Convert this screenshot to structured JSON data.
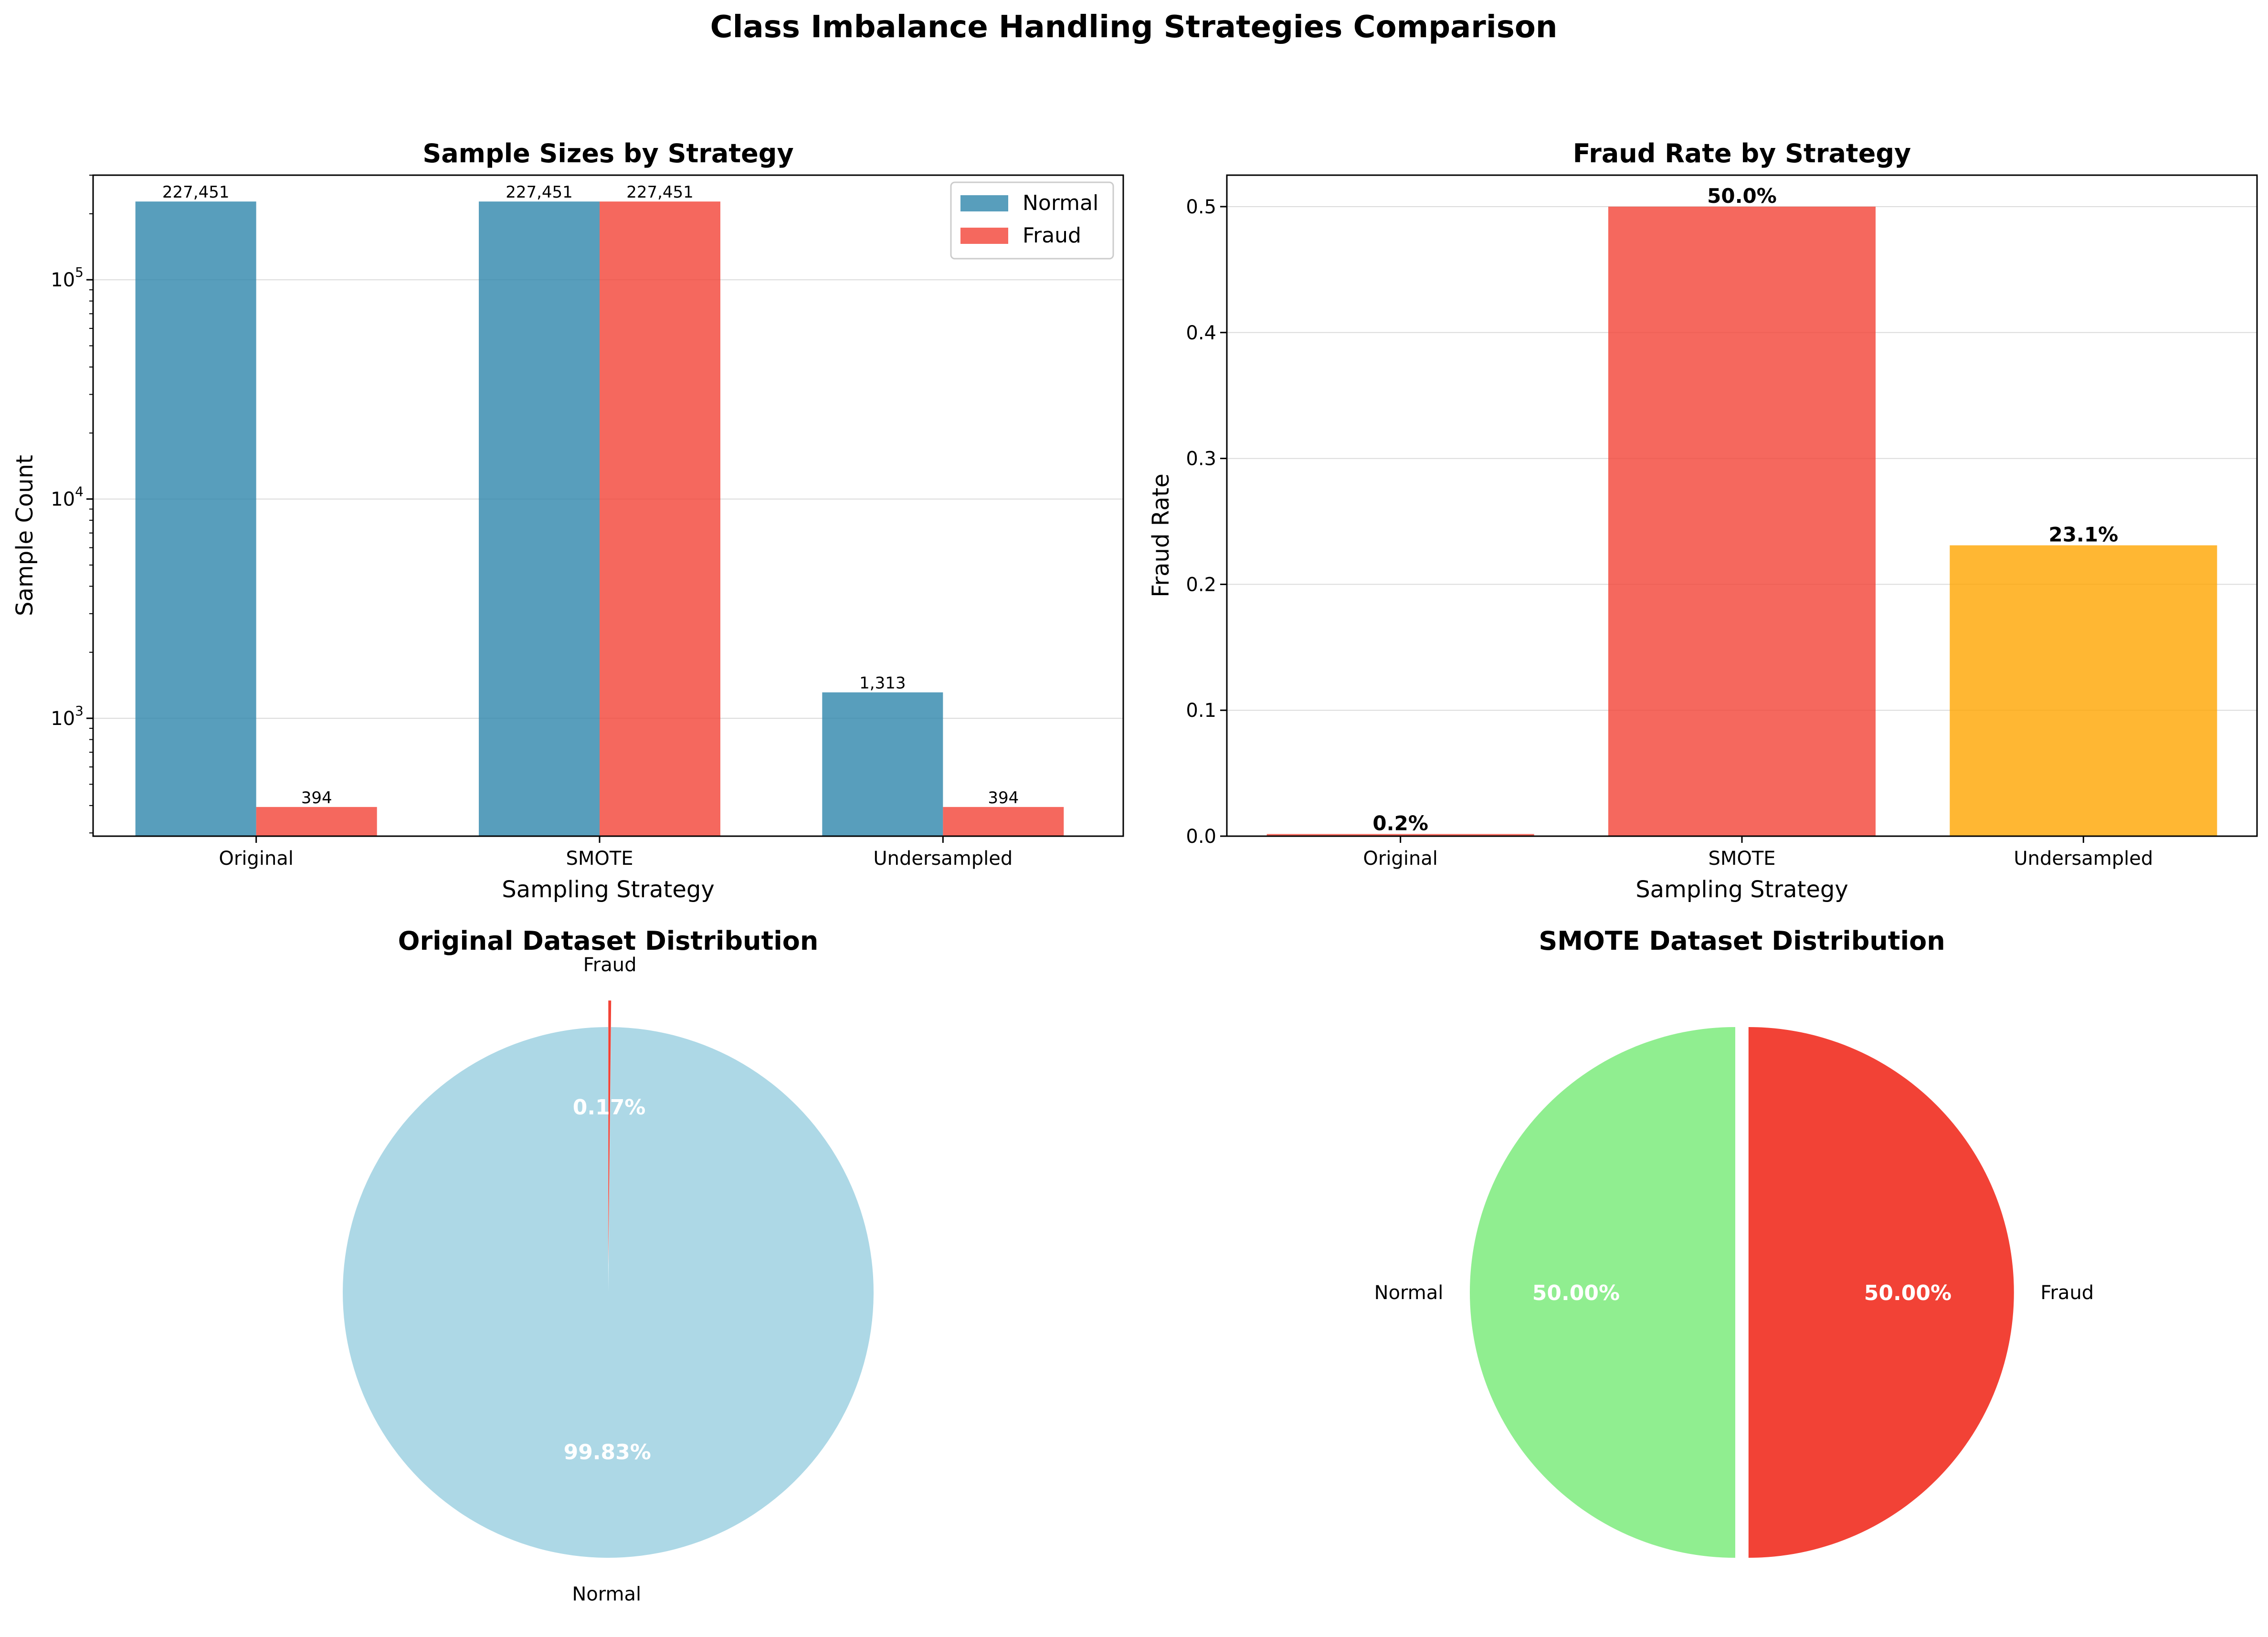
{
  "figure_title": "Class Imbalance Handling Strategies Comparison",
  "colors": {
    "normal": "#2E86AB",
    "fraud": "#F24236",
    "undersampled": "#FFA500",
    "pie_normal": "#ADD8E6",
    "pie_normal_smote": "#90EE90",
    "pie_fraud": "#F24236"
  },
  "chart_data": [
    {
      "type": "bar",
      "title": "Sample Sizes by Strategy",
      "xlabel": "Sampling Strategy",
      "ylabel": "Sample Count",
      "yscale": "log",
      "ylim": [
        290,
        300000
      ],
      "y_ticks": [
        {
          "value": 1000,
          "base": "10",
          "exp": "3"
        },
        {
          "value": 10000,
          "base": "10",
          "exp": "4"
        },
        {
          "value": 100000,
          "base": "10",
          "exp": "5"
        }
      ],
      "categories": [
        "Original",
        "SMOTE",
        "Undersampled"
      ],
      "series": [
        {
          "name": "Normal",
          "values": [
            227451,
            227451,
            1313
          ],
          "labels": [
            "227,451",
            "227,451",
            "1,313"
          ]
        },
        {
          "name": "Fraud",
          "values": [
            394,
            227451,
            394
          ],
          "labels": [
            "394",
            "227,451",
            "394"
          ]
        }
      ],
      "legend": "top-right",
      "grid": "y"
    },
    {
      "type": "bar",
      "title": "Fraud Rate by Strategy",
      "xlabel": "Sampling Strategy",
      "ylabel": "Fraud Rate",
      "ylim": [
        0,
        0.525
      ],
      "y_ticks": [
        "0.0",
        "0.1",
        "0.2",
        "0.3",
        "0.4",
        "0.5"
      ],
      "categories": [
        "Original",
        "SMOTE",
        "Undersampled"
      ],
      "values": [
        0.0017,
        0.5,
        0.231
      ],
      "labels": [
        "0.2%",
        "50.0%",
        "23.1%"
      ],
      "grid": "y"
    },
    {
      "type": "pie",
      "title": "Original Dataset Distribution",
      "slices": [
        {
          "label": "Normal",
          "value": 99.83,
          "pct": "99.83%"
        },
        {
          "label": "Fraud",
          "value": 0.17,
          "pct": "0.17%"
        }
      ]
    },
    {
      "type": "pie",
      "title": "SMOTE Dataset Distribution",
      "slices": [
        {
          "label": "Normal",
          "value": 50.0,
          "pct": "50.00%"
        },
        {
          "label": "Fraud",
          "value": 50.0,
          "pct": "50.00%"
        }
      ]
    }
  ]
}
